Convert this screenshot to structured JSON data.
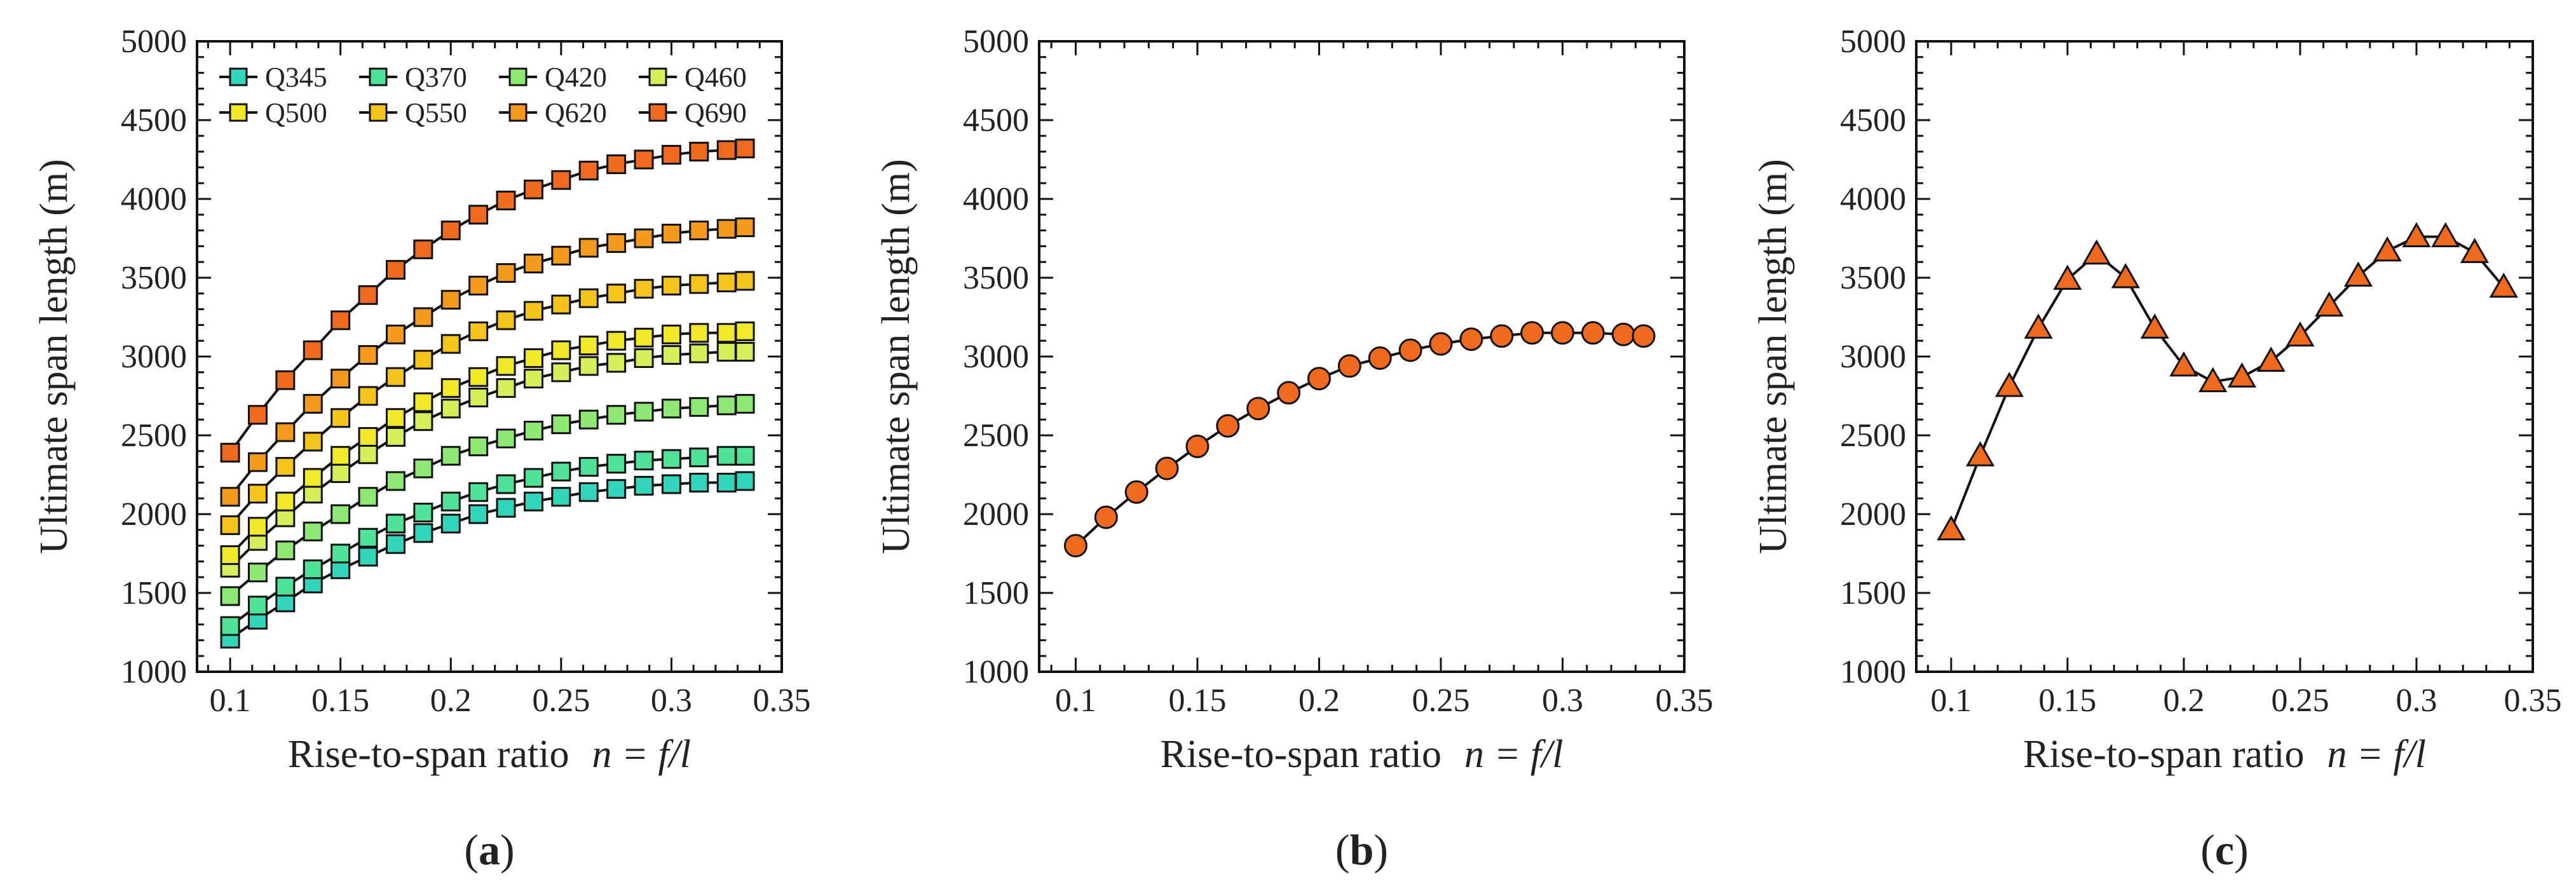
{
  "chart_data": [
    {
      "panel": "a",
      "type": "line",
      "marker": "square",
      "panel_label_pre": "(",
      "panel_label_letter": "a",
      "panel_label_post": ")",
      "xlabel_text": "Rise-to-span ratio",
      "xlabel_var": "n = f/l",
      "ylabel": "Ultimate span length (m)",
      "xlim": [
        0.085,
        0.35
      ],
      "ylim": [
        1000,
        5000
      ],
      "xticks": [
        0.1,
        0.15,
        0.2,
        0.25,
        0.3,
        0.35
      ],
      "xtick_labels": [
        "0.1",
        "0.15",
        "0.2",
        "0.25",
        "0.3",
        "0.35"
      ],
      "yticks": [
        1000,
        1500,
        2000,
        2500,
        3000,
        3500,
        4000,
        4500,
        5000
      ],
      "ytick_labels": [
        "1000",
        "1500",
        "2000",
        "2500",
        "3000",
        "3500",
        "4000",
        "4500",
        "5000"
      ],
      "legend_position": "top-left",
      "x": [
        0.1,
        0.1125,
        0.125,
        0.1375,
        0.15,
        0.1625,
        0.175,
        0.1875,
        0.2,
        0.2125,
        0.225,
        0.2375,
        0.25,
        0.2625,
        0.275,
        0.2875,
        0.3,
        0.3125,
        0.325,
        0.3333
      ],
      "series": [
        {
          "name": "Q345",
          "color": "#33d6b8",
          "values": [
            1210,
            1330,
            1440,
            1560,
            1650,
            1730,
            1810,
            1880,
            1940,
            2000,
            2040,
            2080,
            2110,
            2140,
            2160,
            2180,
            2190,
            2200,
            2200,
            2210
          ]
        },
        {
          "name": "Q370",
          "color": "#4fe39a",
          "values": [
            1290,
            1420,
            1540,
            1650,
            1750,
            1850,
            1940,
            2010,
            2080,
            2140,
            2190,
            2230,
            2270,
            2300,
            2320,
            2340,
            2350,
            2360,
            2370,
            2370
          ]
        },
        {
          "name": "Q420",
          "color": "#8fe873",
          "values": [
            1480,
            1630,
            1770,
            1890,
            2000,
            2110,
            2210,
            2290,
            2370,
            2430,
            2480,
            2530,
            2570,
            2600,
            2630,
            2650,
            2670,
            2680,
            2690,
            2700
          ]
        },
        {
          "name": "Q460",
          "color": "#d6ee5a",
          "values": [
            1660,
            1830,
            1980,
            2130,
            2260,
            2380,
            2490,
            2590,
            2670,
            2740,
            2800,
            2860,
            2900,
            2940,
            2960,
            2990,
            3010,
            3020,
            3030,
            3030
          ]
        },
        {
          "name": "Q500",
          "color": "#f2e82a",
          "values": [
            1740,
            1920,
            2080,
            2230,
            2370,
            2490,
            2610,
            2710,
            2800,
            2870,
            2940,
            2990,
            3040,
            3070,
            3100,
            3120,
            3140,
            3150,
            3150,
            3160
          ]
        },
        {
          "name": "Q550",
          "color": "#f5c41c",
          "values": [
            1930,
            2130,
            2300,
            2460,
            2610,
            2750,
            2870,
            2980,
            3080,
            3160,
            3230,
            3290,
            3330,
            3370,
            3400,
            3430,
            3450,
            3460,
            3470,
            3480
          ]
        },
        {
          "name": "Q620",
          "color": "#f59a1c",
          "values": [
            2110,
            2330,
            2520,
            2700,
            2860,
            3010,
            3140,
            3250,
            3360,
            3450,
            3530,
            3590,
            3640,
            3690,
            3720,
            3750,
            3780,
            3800,
            3810,
            3820
          ]
        },
        {
          "name": "Q690",
          "color": "#ef6a1e",
          "values": [
            2390,
            2630,
            2850,
            3040,
            3230,
            3390,
            3550,
            3680,
            3800,
            3900,
            3990,
            4060,
            4120,
            4180,
            4220,
            4250,
            4280,
            4300,
            4310,
            4320
          ]
        }
      ]
    },
    {
      "panel": "b",
      "type": "line",
      "marker": "circle",
      "panel_label_pre": "(",
      "panel_label_letter": "b",
      "panel_label_post": ")",
      "xlabel_text": "Rise-to-span ratio",
      "xlabel_var": "n = f/l",
      "ylabel": "Ultimate span length (m)",
      "xlim": [
        0.085,
        0.35
      ],
      "ylim": [
        1000,
        5000
      ],
      "xticks": [
        0.1,
        0.15,
        0.2,
        0.25,
        0.3,
        0.35
      ],
      "xtick_labels": [
        "0.1",
        "0.15",
        "0.2",
        "0.25",
        "0.3",
        "0.35"
      ],
      "yticks": [
        1000,
        1500,
        2000,
        2500,
        3000,
        3500,
        4000,
        4500,
        5000
      ],
      "ytick_labels": [
        "1000",
        "1500",
        "2000",
        "2500",
        "3000",
        "3500",
        "4000",
        "4500",
        "5000"
      ],
      "x": [
        0.1,
        0.1125,
        0.125,
        0.1375,
        0.15,
        0.1625,
        0.175,
        0.1875,
        0.2,
        0.2125,
        0.225,
        0.2375,
        0.25,
        0.2625,
        0.275,
        0.2875,
        0.3,
        0.3125,
        0.325,
        0.3333
      ],
      "series": [
        {
          "name": "",
          "color": "#ef6a1e",
          "values": [
            1800,
            1980,
            2140,
            2290,
            2430,
            2560,
            2670,
            2770,
            2860,
            2940,
            2990,
            3040,
            3080,
            3110,
            3130,
            3150,
            3150,
            3150,
            3140,
            3130
          ]
        }
      ]
    },
    {
      "panel": "c",
      "type": "line",
      "marker": "triangle",
      "panel_label_pre": "(",
      "panel_label_letter": "c",
      "panel_label_post": ")",
      "xlabel_text": "Rise-to-span ratio",
      "xlabel_var": "n = f/l",
      "ylabel": "Ultimate span length (m)",
      "xlim": [
        0.085,
        0.35
      ],
      "ylim": [
        1000,
        5000
      ],
      "xticks": [
        0.1,
        0.15,
        0.2,
        0.25,
        0.3,
        0.35
      ],
      "xtick_labels": [
        "0.1",
        "0.15",
        "0.2",
        "0.25",
        "0.3",
        "0.35"
      ],
      "yticks": [
        1000,
        1500,
        2000,
        2500,
        3000,
        3500,
        4000,
        4500,
        5000
      ],
      "ytick_labels": [
        "1000",
        "1500",
        "2000",
        "2500",
        "3000",
        "3500",
        "4000",
        "4500",
        "5000"
      ],
      "x": [
        0.1,
        0.1125,
        0.125,
        0.1375,
        0.15,
        0.1625,
        0.175,
        0.1875,
        0.2,
        0.2125,
        0.225,
        0.2375,
        0.25,
        0.2625,
        0.275,
        0.2875,
        0.3,
        0.3125,
        0.325,
        0.3375
      ],
      "series": [
        {
          "name": "",
          "color": "#ef6a1e",
          "values": [
            1900,
            2370,
            2810,
            3180,
            3490,
            3650,
            3500,
            3180,
            2940,
            2840,
            2870,
            2970,
            3130,
            3320,
            3510,
            3670,
            3760,
            3760,
            3660,
            3440
          ]
        }
      ]
    }
  ]
}
